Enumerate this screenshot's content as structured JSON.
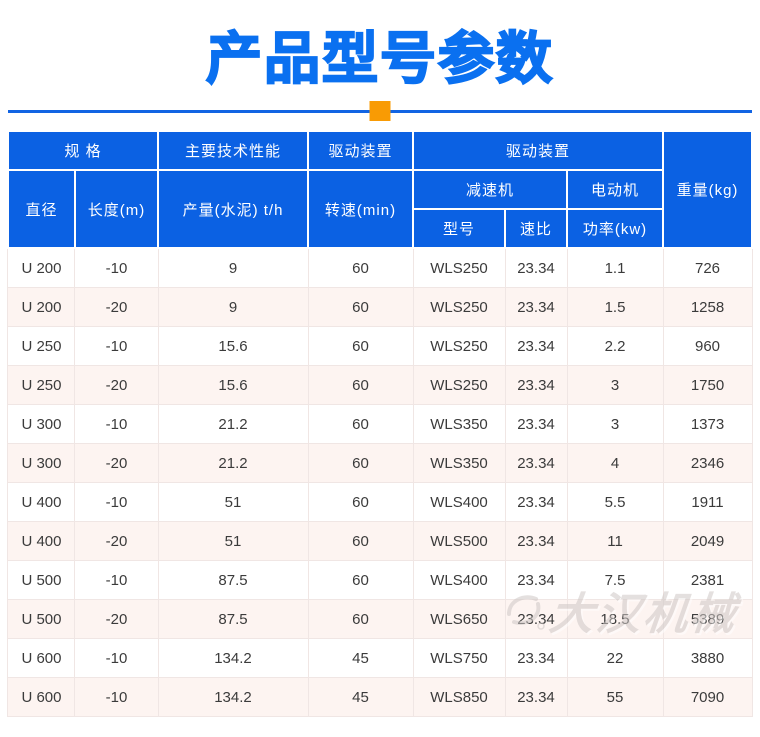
{
  "page": {
    "title": "产品型号参数"
  },
  "table": {
    "header": {
      "spec_group": "规 格",
      "performance_group": "主要技术性能",
      "drive_group_left": "驱动装置",
      "drive_group_right": "驱动装置",
      "weight": "重量(kg)",
      "diameter": "直径",
      "length": "长度(m)",
      "output": "产量(水泥) t/h",
      "rotation_speed": "转速(min)",
      "reducer_group": "减速机",
      "motor_group": "电动机",
      "reducer_model": "型号",
      "speed_ratio": "速比",
      "motor_power": "功率(kw)"
    },
    "rows": [
      [
        "U 200",
        "-10",
        "9",
        "60",
        "WLS250",
        "23.34",
        "1.1",
        "726"
      ],
      [
        "U 200",
        "-20",
        "9",
        "60",
        "WLS250",
        "23.34",
        "1.5",
        "1258"
      ],
      [
        "U 250",
        "-10",
        "15.6",
        "60",
        "WLS250",
        "23.34",
        "2.2",
        "960"
      ],
      [
        "U 250",
        "-20",
        "15.6",
        "60",
        "WLS250",
        "23.34",
        "3",
        "1750"
      ],
      [
        "U 300",
        "-10",
        "21.2",
        "60",
        "WLS350",
        "23.34",
        "3",
        "1373"
      ],
      [
        "U 300",
        "-20",
        "21.2",
        "60",
        "WLS350",
        "23.34",
        "4",
        "2346"
      ],
      [
        "U 400",
        "-10",
        "51",
        "60",
        "WLS400",
        "23.34",
        "5.5",
        "1911"
      ],
      [
        "U 400",
        "-20",
        "51",
        "60",
        "WLS500",
        "23.34",
        "11",
        "2049"
      ],
      [
        "U 500",
        "-10",
        "87.5",
        "60",
        "WLS400",
        "23.34",
        "7.5",
        "2381"
      ],
      [
        "U 500",
        "-20",
        "87.5",
        "60",
        "WLS650",
        "23.34",
        "18.5",
        "5389"
      ],
      [
        "U 600",
        "-10",
        "134.2",
        "45",
        "WLS750",
        "23.34",
        "22",
        "3880"
      ],
      [
        "U 600",
        "-10",
        "134.2",
        "45",
        "WLS850",
        "23.34",
        "55",
        "7090"
      ]
    ]
  },
  "watermark": {
    "text": "大汉机械"
  },
  "colors": {
    "title_blue": "#0a70f0",
    "header_blue": "#0b61e3",
    "divider_blue": "#1164e3",
    "accent_orange": "#f99b04",
    "row_alt_pink": "#fdf4f1",
    "body_text": "#3b3b3b"
  }
}
